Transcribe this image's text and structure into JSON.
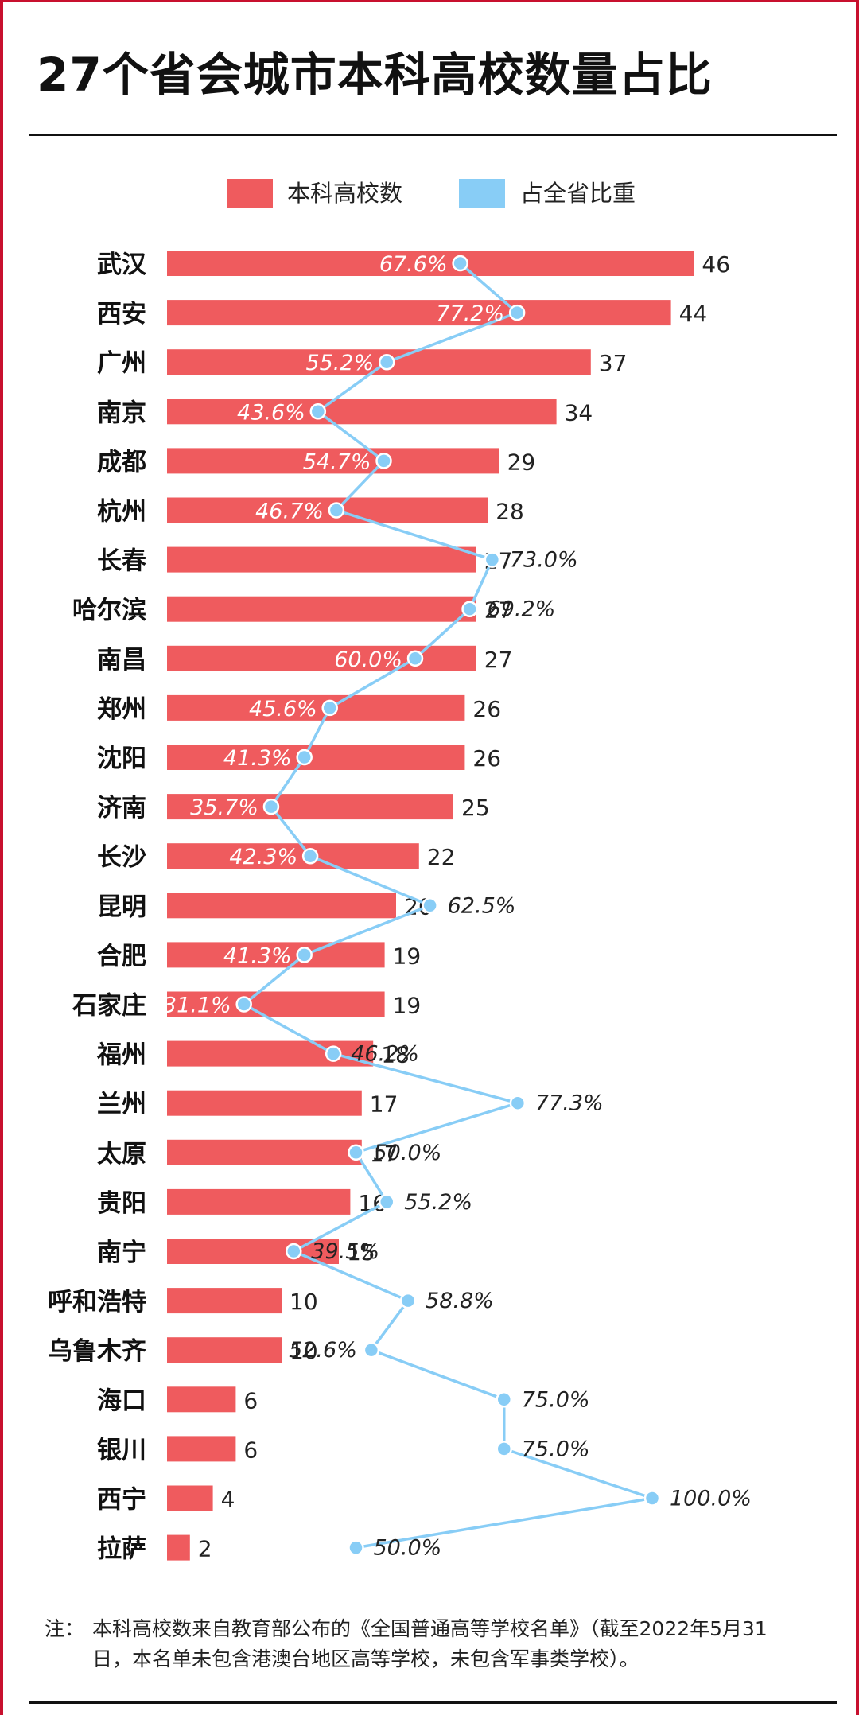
{
  "title": "27个省会城市本科高校数量占比",
  "legend": [
    {
      "label": "本科高校数",
      "color": "#ef5b5e"
    },
    {
      "label": "占全省比重",
      "color": "#88cdf6"
    }
  ],
  "chart_data": {
    "type": "bar",
    "orientation": "horizontal",
    "categories": [
      "武汉",
      "西安",
      "广州",
      "南京",
      "成都",
      "杭州",
      "长春",
      "哈尔滨",
      "南昌",
      "郑州",
      "沈阳",
      "济南",
      "长沙",
      "昆明",
      "合肥",
      "石家庄",
      "福州",
      "兰州",
      "太原",
      "贵阳",
      "南宁",
      "呼和浩特",
      "乌鲁木齐",
      "海口",
      "银川",
      "西宁",
      "拉萨"
    ],
    "series": [
      {
        "name": "本科高校数",
        "type": "bar",
        "color": "#ef5b5e",
        "values": [
          46,
          44,
          37,
          34,
          29,
          28,
          27,
          27,
          27,
          26,
          26,
          25,
          22,
          20,
          19,
          19,
          18,
          17,
          17,
          16,
          15,
          10,
          10,
          6,
          6,
          4,
          2
        ],
        "labels": [
          "46",
          "44",
          "37",
          "34",
          "29",
          "28",
          "27",
          "27",
          "27",
          "26",
          "26",
          "25",
          "22",
          "20",
          "19",
          "19",
          "18",
          "17",
          "17",
          "16",
          "15",
          "10",
          "10",
          "6",
          "6",
          "4",
          "2"
        ]
      },
      {
        "name": "占全省比重",
        "type": "line",
        "color": "#88cdf6",
        "values": [
          67.6,
          77.2,
          55.2,
          43.6,
          54.7,
          46.7,
          73.0,
          69.2,
          60.0,
          45.6,
          41.3,
          35.7,
          42.3,
          62.5,
          41.3,
          31.1,
          46.2,
          77.3,
          50.0,
          55.2,
          39.5,
          58.8,
          52.6,
          75.0,
          75.0,
          100.0,
          50.0
        ],
        "labels": [
          "67.6%",
          "77.2%",
          "55.2%",
          "43.6%",
          "54.7%",
          "46.7%",
          "73.0%",
          "69.2%",
          "60.0%",
          "45.6%",
          "41.3%",
          "35.7%",
          "42.3%",
          "62.5%",
          "41.3%",
          "31.1%",
          "46.2%",
          "77.3%",
          "50.0%",
          "55.2%",
          "39.5%",
          "58.8%",
          "52.6%",
          "75.0%",
          "75.0%",
          "100.0%",
          "50.0%"
        ]
      }
    ],
    "xlabel": "",
    "ylabel": "",
    "grid": false,
    "legend_position": "top-center"
  },
  "note": {
    "label": "注：",
    "line1": "本科高校数来自教育部公布的《全国普通高等学校名单》（截至2022年5月31",
    "line2": "日，本名单未包含港澳台地区高等学校，未包含军事类学校）。"
  }
}
